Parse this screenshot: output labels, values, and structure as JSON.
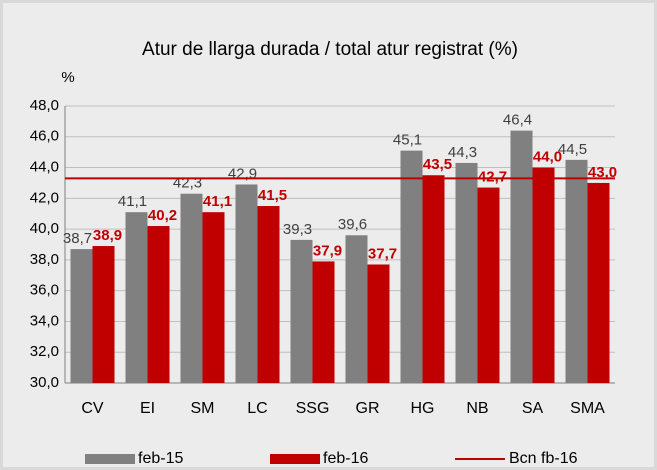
{
  "chart_data": {
    "type": "bar",
    "title": "Atur de llarga durada / total atur registrat (%)",
    "y_label": "%",
    "categories": [
      "CV",
      "EI",
      "SM",
      "LC",
      "SSG",
      "GR",
      "HG",
      "NB",
      "SA",
      "SMA"
    ],
    "series": [
      {
        "name": "feb-15",
        "color": "#808080",
        "values": [
          38.7,
          41.1,
          42.3,
          42.9,
          39.3,
          39.6,
          45.1,
          44.3,
          46.4,
          44.5
        ],
        "value_labels": [
          "38,7",
          "41,1",
          "42,3",
          "42,9",
          "39,3",
          "39,6",
          "45,1",
          "44,3",
          "46,4",
          "44,5"
        ]
      },
      {
        "name": "feb-16",
        "color": "#c00000",
        "values": [
          38.9,
          40.2,
          41.1,
          41.5,
          37.9,
          37.7,
          43.5,
          42.7,
          44.0,
          43.0
        ],
        "value_labels": [
          "38,9",
          "40,2",
          "41,1",
          "41,5",
          "37,9",
          "37,7",
          "43,5",
          "42,7",
          "44,0",
          "43,0"
        ]
      }
    ],
    "reference_line": {
      "name": "Bcn fb-16",
      "value": 43.3,
      "color": "#c00000"
    },
    "ylim": [
      30,
      48
    ],
    "yticks": [
      {
        "value": 30,
        "label": "30,0"
      },
      {
        "value": 32,
        "label": "32,0"
      },
      {
        "value": 34,
        "label": "34,0"
      },
      {
        "value": 36,
        "label": "36,0"
      },
      {
        "value": 38,
        "label": "38,0"
      },
      {
        "value": 40,
        "label": "40,0"
      },
      {
        "value": 42,
        "label": "42,0"
      },
      {
        "value": 44,
        "label": "44,0"
      },
      {
        "value": 46,
        "label": "46,0"
      },
      {
        "value": 48,
        "label": "48,0"
      }
    ],
    "grid": true,
    "legend": "bottom"
  }
}
